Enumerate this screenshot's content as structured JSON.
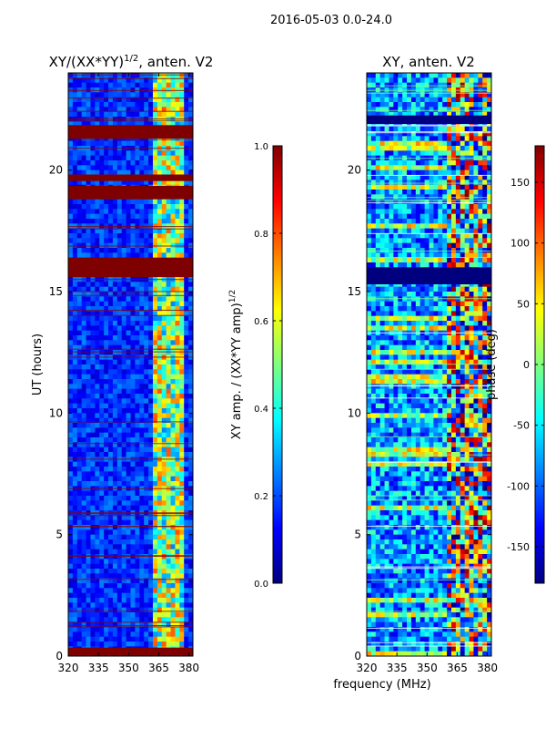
{
  "suptitle": "2016-05-03 0.0-24.0",
  "colors": {
    "frame": "#000000",
    "background": "#ffffff"
  },
  "chart_data": [
    {
      "type": "heatmap",
      "title": "XY/(XX*YY)",
      "title_exponent": "1/2",
      "title_suffix": ", anten. V2",
      "ylabel": "UT (hours)",
      "xlabel": "",
      "x_ticks": [
        "320",
        "335",
        "350",
        "365",
        "380"
      ],
      "x_tick_values": [
        320,
        335,
        350,
        365,
        380
      ],
      "y_ticks": [
        "0",
        "5",
        "10",
        "15",
        "20"
      ],
      "y_tick_values": [
        0,
        5,
        10,
        15,
        20
      ],
      "xlim": [
        320,
        382
      ],
      "ylim": [
        0,
        24
      ],
      "flagged_bands_hours": [
        [
          0.0,
          0.35
        ],
        [
          15.6,
          16.4
        ],
        [
          18.8,
          19.35
        ],
        [
          19.55,
          19.8
        ],
        [
          21.3,
          21.85
        ]
      ],
      "bright_freq_range_mhz": [
        361,
        378
      ],
      "colorbar": {
        "label": "XY amp. / (XX*YY amp)",
        "label_exponent": "1/2",
        "ticks": [
          "0.0",
          "0.2",
          "0.4",
          "0.6",
          "0.8",
          "1.0"
        ],
        "tick_values": [
          0.0,
          0.2,
          0.4,
          0.6,
          0.8,
          1.0
        ],
        "range": [
          0.0,
          1.0
        ]
      }
    },
    {
      "type": "heatmap",
      "title": "XY, anten. V2",
      "ylabel": "",
      "xlabel": "frequency (MHz)",
      "x_ticks": [
        "320",
        "335",
        "350",
        "365",
        "380"
      ],
      "x_tick_values": [
        320,
        335,
        350,
        365,
        380
      ],
      "y_ticks": [
        "0",
        "5",
        "10",
        "15",
        "20"
      ],
      "y_tick_values": [
        0,
        5,
        10,
        15,
        20
      ],
      "xlim": [
        320,
        382
      ],
      "ylim": [
        0,
        24
      ],
      "flagged_bands_hours": [
        [
          15.3,
          16.0
        ],
        [
          21.9,
          22.25
        ]
      ],
      "bright_freq_range_mhz": [
        359,
        382
      ],
      "colorbar": {
        "label": "phase (deg)",
        "ticks": [
          "-150",
          "-100",
          "-50",
          "0",
          "50",
          "100",
          "150"
        ],
        "tick_values": [
          -150,
          -100,
          -50,
          0,
          50,
          100,
          150
        ],
        "range": [
          -180,
          180
        ]
      }
    }
  ]
}
